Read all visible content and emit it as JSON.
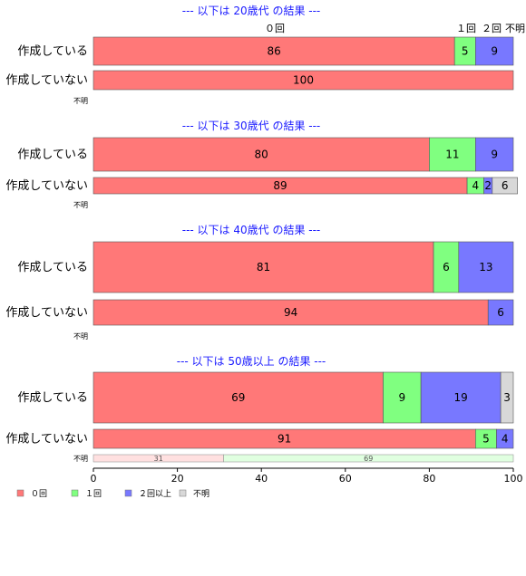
{
  "chart_data": {
    "type": "bar",
    "orientation": "horizontal-stacked-percent",
    "xlim": [
      0,
      100
    ],
    "xticks": [
      "0",
      "20",
      "40",
      "60",
      "80",
      "100"
    ],
    "categories_header": [
      "０回",
      "１回",
      "２回",
      "不明"
    ],
    "legend": {
      "placement": "bottom-left",
      "items": [
        {
          "name": "０回",
          "color": "#ff7878"
        },
        {
          "name": "１回",
          "color": "#80ff80"
        },
        {
          "name": "２回以上",
          "color": "#7878ff"
        },
        {
          "name": "不明",
          "color": "#d8d8d8"
        }
      ]
    },
    "panels": [
      {
        "title": "--- 以下は 20歳代 の結果 ---",
        "rows": [
          {
            "label": "作成している",
            "values": [
              86,
              5,
              9,
              0
            ]
          },
          {
            "label": "作成していない",
            "values": [
              100,
              0,
              0,
              0
            ]
          }
        ],
        "unknown_row": {
          "label": "不明",
          "values": []
        }
      },
      {
        "title": "--- 以下は 30歳代 の結果 ---",
        "rows": [
          {
            "label": "作成している",
            "values": [
              80,
              11,
              9,
              0
            ]
          },
          {
            "label": "作成していない",
            "values": [
              89,
              4,
              2,
              6
            ]
          }
        ],
        "unknown_row": {
          "label": "不明",
          "values": []
        }
      },
      {
        "title": "--- 以下は 40歳代 の結果 ---",
        "rows": [
          {
            "label": "作成している",
            "values": [
              81,
              6,
              13,
              0
            ]
          },
          {
            "label": "作成していない",
            "values": [
              94,
              0,
              6,
              0
            ]
          }
        ],
        "unknown_row": {
          "label": "不明",
          "values": []
        }
      },
      {
        "title": "--- 以下は 50歳以上 の結果 ---",
        "rows": [
          {
            "label": "作成している",
            "values": [
              69,
              9,
              19,
              3
            ]
          },
          {
            "label": "作成していない",
            "values": [
              91,
              5,
              4,
              0
            ]
          }
        ],
        "unknown_row": {
          "label": "不明",
          "values": [
            31,
            69
          ]
        }
      }
    ]
  }
}
